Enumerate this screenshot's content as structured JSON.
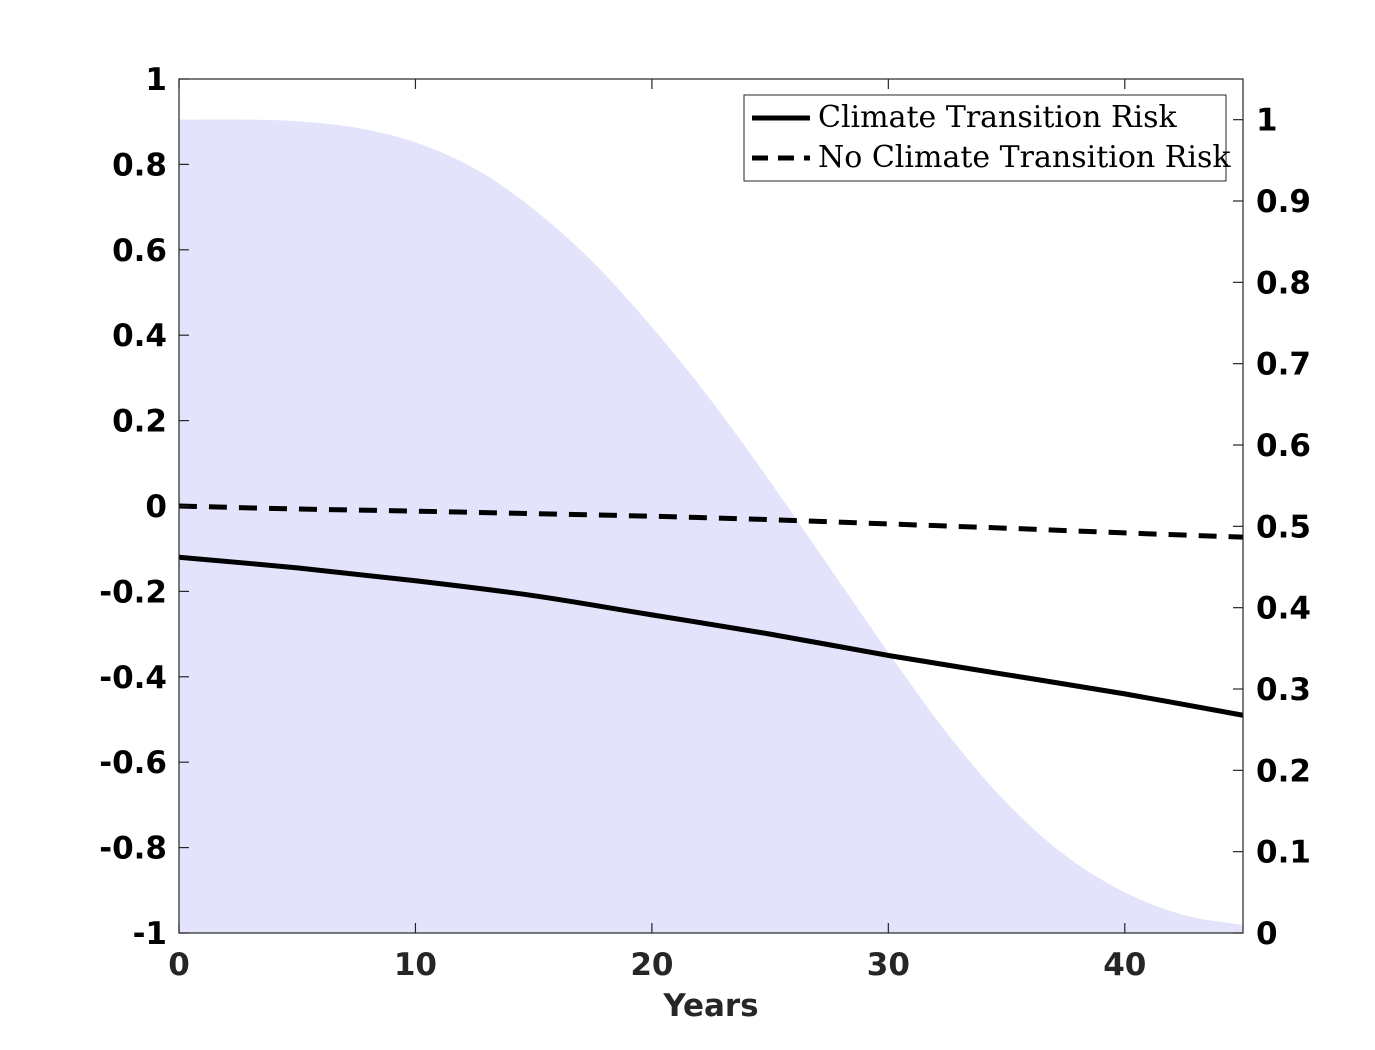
{
  "chart_data": {
    "type": "line",
    "title": "",
    "xlabel": "Years",
    "ylabel": "",
    "y2label": "",
    "xlim": [
      0,
      45
    ],
    "ylim": [
      -1,
      1
    ],
    "y2lim": [
      0,
      1.05
    ],
    "x_ticks": [
      0,
      10,
      20,
      30,
      40
    ],
    "x_tick_labels": [
      "0",
      "10",
      "20",
      "30",
      "40"
    ],
    "y_ticks": [
      -1,
      -0.8,
      -0.6,
      -0.4,
      -0.2,
      0,
      0.2,
      0.4,
      0.6,
      0.8,
      1
    ],
    "y_tick_labels": [
      "-1",
      "-0.8",
      "-0.6",
      "-0.4",
      "-0.2",
      "0",
      "0.2",
      "0.4",
      "0.6",
      "0.8",
      "1"
    ],
    "y2_ticks": [
      0,
      0.1,
      0.2,
      0.3,
      0.4,
      0.5,
      0.6,
      0.7,
      0.8,
      0.9,
      1
    ],
    "y2_tick_labels": [
      "0",
      "0.1",
      "0.2",
      "0.3",
      "0.4",
      "0.5",
      "0.6",
      "0.7",
      "0.8",
      "0.9",
      "1"
    ],
    "grid": false,
    "legend_position": "top-right",
    "series": [
      {
        "name": "Climate Transition Risk",
        "axis": "left",
        "style": "solid",
        "color": "#000000",
        "x": [
          0,
          5,
          10,
          15,
          20,
          25,
          30,
          35,
          40,
          45
        ],
        "values": [
          -0.12,
          -0.145,
          -0.175,
          -0.21,
          -0.255,
          -0.3,
          -0.35,
          -0.395,
          -0.44,
          -0.49
        ]
      },
      {
        "name": "No Climate Transition Risk",
        "axis": "left",
        "style": "dashed",
        "color": "#000000",
        "x": [
          0,
          5,
          10,
          15,
          20,
          25,
          30,
          35,
          40,
          45
        ],
        "values": [
          0.0,
          -0.007,
          -0.012,
          -0.018,
          -0.024,
          -0.032,
          -0.042,
          -0.052,
          -0.063,
          -0.073
        ]
      }
    ],
    "area": {
      "name": "shaded-probability",
      "axis": "right",
      "color": "#e3e3fb",
      "x": [
        0,
        3,
        5,
        7.5,
        10,
        12.5,
        15,
        17.5,
        20,
        22.5,
        25,
        27.5,
        30,
        32.5,
        35,
        37.5,
        40,
        42.5,
        45
      ],
      "values": [
        1.0,
        1.0,
        0.998,
        0.99,
        0.972,
        0.94,
        0.89,
        0.825,
        0.745,
        0.655,
        0.555,
        0.45,
        0.345,
        0.245,
        0.16,
        0.095,
        0.05,
        0.022,
        0.01
      ]
    }
  }
}
